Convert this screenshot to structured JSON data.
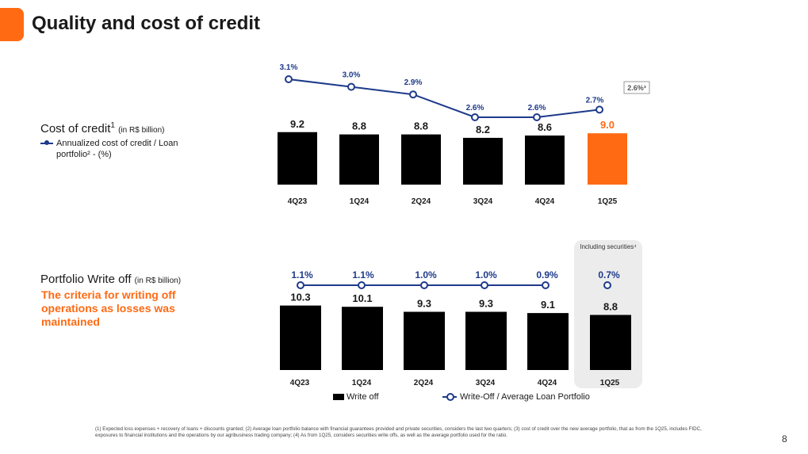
{
  "page": {
    "title": "Quality and cost of credit",
    "page_number": "8",
    "footnote": "(1) Expected loss expenses + recovery of loans + discounts granted; (2) Average loan portfolio balance with financial guarantees provided and private securities, considers the last two quarters; (3) cost of credit over the new average portfolio, that as from the 1Q25, includes FIDC, exposures to financial institutions and the operations by our agribusiness trading company; (4) As from 1Q25, considers securities write offs, as well as the average portfolio used for the ratio.",
    "colors": {
      "accent": "#FF6A13",
      "bar": "#000000",
      "line": "#1E3A8A",
      "highlight_box": "#ECECEC"
    }
  },
  "cost_section": {
    "label": "Cost of credit",
    "label_sup": "1",
    "label_unit": "(in R$ billion)",
    "legend": "Annualized cost of credit / Loan portfolio² - (%)",
    "extra_ratio": "2.6%³"
  },
  "writeoff_section": {
    "label": "Portfolio Write off",
    "label_unit": "(in R$ billion)",
    "note": "The criteria for writing off operations as losses was maintained",
    "box_text": "Including securities⁴",
    "legend_bar": "Write off",
    "legend_line": "Write-Off / Average Loan Portfolio"
  },
  "chart_data": [
    {
      "type": "bar",
      "title": "Cost of credit (in R$ billion)",
      "categories": [
        "4Q23",
        "1Q24",
        "2Q24",
        "3Q24",
        "4Q24",
        "1Q25"
      ],
      "series": [
        {
          "name": "Cost of credit (R$ billion)",
          "values": [
            9.2,
            8.8,
            8.8,
            8.2,
            8.6,
            9.0
          ],
          "labels": [
            "9.2",
            "8.8",
            "8.8",
            "8.2",
            "8.6",
            "9.0"
          ]
        },
        {
          "name": "Annualized cost of credit / Loan portfolio (%)",
          "type": "line",
          "values": [
            3.1,
            3.0,
            2.9,
            2.6,
            2.6,
            2.7
          ],
          "labels": [
            "3.1%",
            "3.0%",
            "2.9%",
            "2.6%",
            "2.6%",
            "2.7%"
          ]
        }
      ],
      "highlight_index": 5,
      "xlabel": "",
      "ylabel": ""
    },
    {
      "type": "bar",
      "title": "Portfolio Write off (in R$ billion)",
      "categories": [
        "4Q23",
        "1Q24",
        "2Q24",
        "3Q24",
        "4Q24",
        "1Q25"
      ],
      "series": [
        {
          "name": "Write off",
          "values": [
            10.3,
            10.1,
            9.3,
            9.3,
            9.1,
            8.8
          ],
          "labels": [
            "10.3",
            "10.1",
            "9.3",
            "9.3",
            "9.1",
            "8.8"
          ]
        },
        {
          "name": "Write-Off / Average Loan Portfolio",
          "type": "line",
          "values": [
            1.1,
            1.1,
            1.0,
            1.0,
            0.9,
            0.7
          ],
          "labels": [
            "1.1%",
            "1.1%",
            "1.0%",
            "1.0%",
            "0.9%",
            "0.7%"
          ],
          "connected_points": 5
        }
      ],
      "xlabel": "",
      "ylabel": ""
    }
  ]
}
